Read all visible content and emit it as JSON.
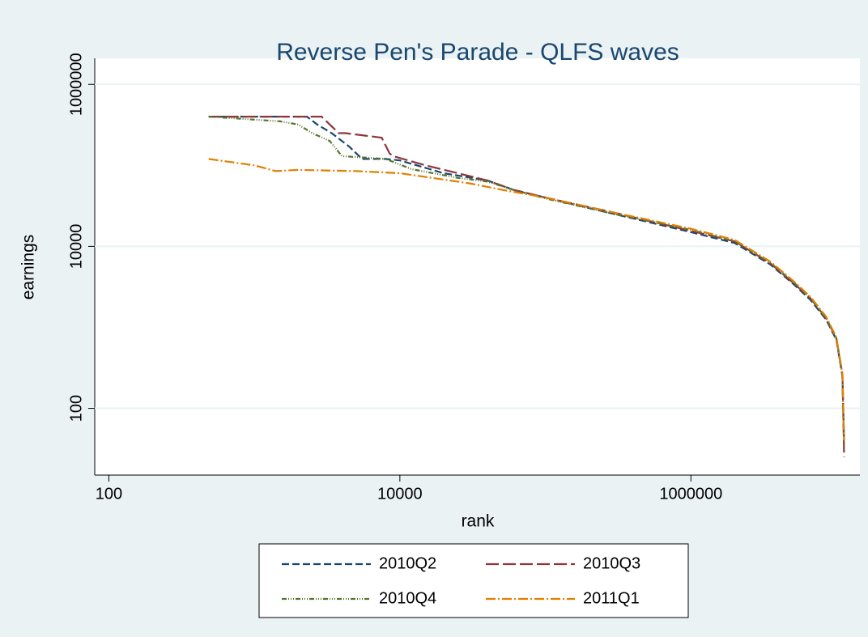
{
  "chart_data": {
    "type": "line",
    "title": "Reverse Pen's Parade -  QLFS waves",
    "xlabel": "rank",
    "ylabel": "earnings",
    "xscale": "log",
    "yscale": "log",
    "xlim": [
      80,
      14500000
    ],
    "ylim": [
      15,
      2100000
    ],
    "xticks": [
      100,
      10000,
      1000000
    ],
    "yticks": [
      100,
      10000,
      1000000
    ],
    "grid": true,
    "legend": "bottom",
    "series": [
      {
        "name": "2010Q2",
        "color": "#1a476f",
        "dash": "9,4",
        "x": [
          485,
          2300,
          2700,
          3400,
          4000,
          4500,
          5500,
          8000,
          10000,
          20000,
          40000,
          60000,
          100000,
          300000,
          1000000,
          2000000,
          3500000,
          5000000,
          6600000,
          8500000,
          10000000,
          11000000,
          11300000
        ],
        "values": [
          400000,
          400000,
          320000,
          250000,
          200000,
          170000,
          120000,
          120000,
          115000,
          80000,
          65000,
          50000,
          40000,
          25000,
          15000,
          11000,
          6000,
          3500,
          2200,
          1250,
          700,
          250,
          40
        ]
      },
      {
        "name": "2010Q3",
        "color": "#90353b",
        "dash": "16,5",
        "x": [
          485,
          2900,
          3800,
          4200,
          7500,
          8500,
          9000,
          15000,
          25000,
          40000,
          60000,
          100000,
          300000,
          1000000,
          2000000,
          3500000,
          5000000,
          6600000,
          8500000,
          10000000,
          11000000,
          11300000
        ],
        "values": [
          400000,
          400000,
          250000,
          250000,
          220000,
          140000,
          130000,
          100000,
          80000,
          65000,
          50000,
          40000,
          26000,
          15500,
          11500,
          6200,
          3600,
          2300,
          1300,
          720,
          260,
          25
        ]
      },
      {
        "name": "2010Q4",
        "color": "#55752f",
        "dash": "6,2,1,2,1,2,1,2",
        "x": [
          485,
          1500,
          2000,
          2500,
          3300,
          4000,
          8000,
          12000,
          25000,
          40000,
          60000,
          100000,
          300000,
          1000000,
          2000000,
          3500000,
          5000000,
          6600000,
          8500000,
          10000000,
          11000000,
          11300000
        ],
        "values": [
          400000,
          350000,
          320000,
          250000,
          200000,
          130000,
          120000,
          90000,
          70000,
          63000,
          50000,
          39000,
          25000,
          16000,
          11500,
          6300,
          3700,
          2300,
          1300,
          730,
          260,
          35
        ]
      },
      {
        "name": "2011Q1",
        "color": "#e37e00",
        "dash": "12,3,2,3",
        "x": [
          485,
          1000,
          1400,
          2000,
          5000,
          10000,
          30000,
          50000,
          100000,
          300000,
          1000000,
          2000000,
          3500000,
          5000000,
          6600000,
          8500000,
          10000000,
          11000000,
          11300000
        ],
        "values": [
          120000,
          100000,
          85000,
          88000,
          85000,
          80000,
          60000,
          50000,
          40000,
          26000,
          16500,
          12000,
          6500,
          3800,
          2400,
          1350,
          750,
          270,
          40
        ]
      }
    ]
  }
}
